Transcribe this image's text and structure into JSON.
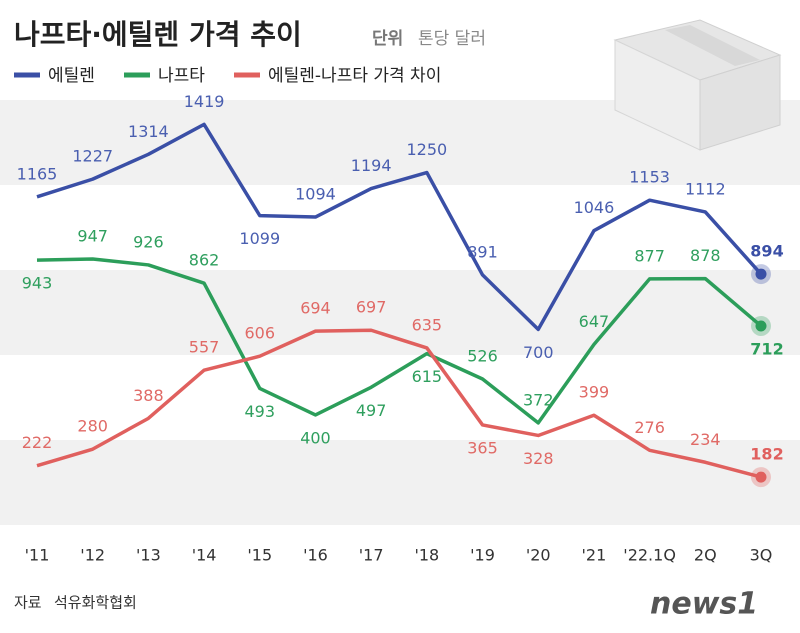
{
  "chart_data": {
    "type": "line",
    "title": "나프타·에틸렌 가격 추이",
    "unit_label": "단위",
    "unit": "톤당 달러",
    "categories": [
      "'11",
      "'12",
      "'13",
      "'14",
      "'15",
      "'16",
      "'17",
      "'18",
      "'19",
      "'20",
      "'21",
      "'22.1Q",
      "2Q",
      "3Q"
    ],
    "series": [
      {
        "name": "에틸렌",
        "color": "#3a4fa6",
        "values": [
          1165,
          1227,
          1314,
          1419,
          1099,
          1094,
          1194,
          1250,
          891,
          700,
          1046,
          1153,
          1112,
          894
        ]
      },
      {
        "name": "나프타",
        "color": "#2c9e5a",
        "values": [
          943,
          947,
          926,
          862,
          493,
          400,
          497,
          615,
          526,
          372,
          647,
          877,
          878,
          712
        ]
      },
      {
        "name": "에틸렌-나프타 가격 차이",
        "color": "#e0605e",
        "values": [
          222,
          280,
          388,
          557,
          606,
          694,
          697,
          635,
          365,
          328,
          399,
          276,
          234,
          182
        ]
      }
    ],
    "ylim": [
      0,
      1550
    ],
    "source_label": "자료",
    "source": "석유화학협회",
    "logo": "news1"
  }
}
